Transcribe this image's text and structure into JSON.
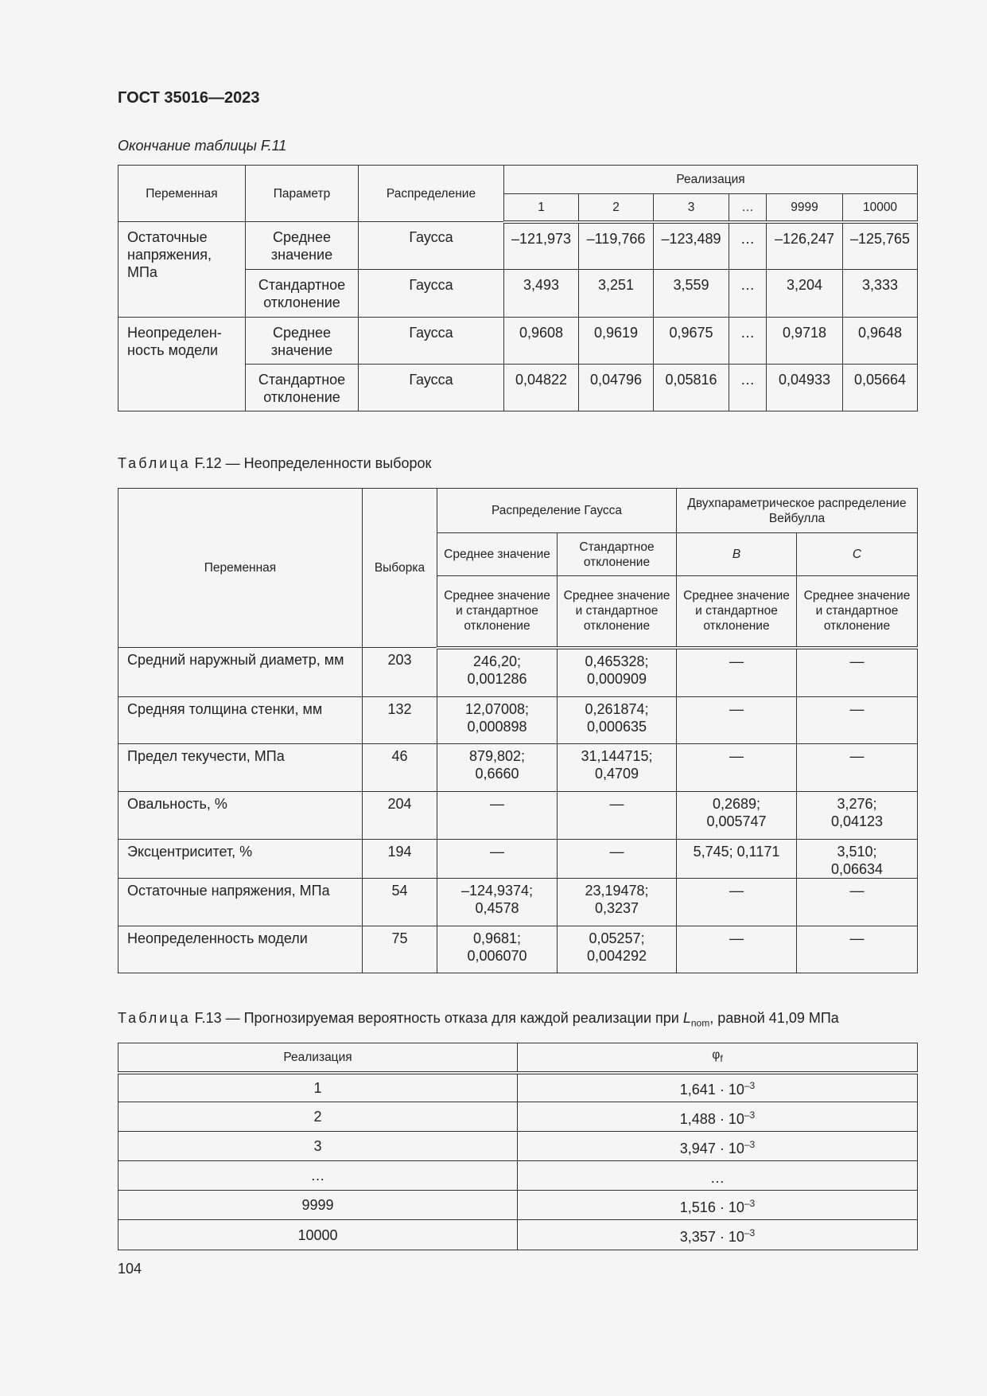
{
  "header": {
    "doc_title": "ГОСТ 35016—2023"
  },
  "table_f11": {
    "caption": "Окончание таблицы F.11",
    "headers": {
      "variable": "Переменная",
      "parameter": "Параметр",
      "distribution": "Распределение",
      "realization": "Реализация",
      "realizations": [
        "1",
        "2",
        "3",
        "…",
        "9999",
        "10000"
      ]
    },
    "rows": [
      {
        "variable": "Остаточные напряжения, МПа",
        "parameter": "Среднее значение",
        "distribution": "Гаусса",
        "values": [
          "–121,973",
          "–119,766",
          "–123,489",
          "…",
          "–126,247",
          "–125,765"
        ]
      },
      {
        "parameter": "Стандартное отклонение",
        "distribution": "Гаусса",
        "values": [
          "3,493",
          "3,251",
          "3,559",
          "…",
          "3,204",
          "3,333"
        ]
      },
      {
        "variable": "Неопределен-ность модели",
        "parameter": "Среднее значение",
        "distribution": "Гаусса",
        "values": [
          "0,9608",
          "0,9619",
          "0,9675",
          "…",
          "0,9718",
          "0,9648"
        ]
      },
      {
        "parameter": "Стандартное отклонение",
        "distribution": "Гаусса",
        "values": [
          "0,04822",
          "0,04796",
          "0,05816",
          "…",
          "0,04933",
          "0,05664"
        ]
      }
    ]
  },
  "table_f12": {
    "caption_label": "Таблица",
    "caption_text": "F.12 — Неопределенности выборок",
    "headers": {
      "variable": "Переменная",
      "sample": "Выборка",
      "gauss": "Распределение Гаусса",
      "weibull": "Двухпараметрическое распределение Вейбулла",
      "mean": "Среднее значение",
      "std": "Стандартное отклонение",
      "b": "B",
      "c": "C",
      "sub": "Среднее значение и стандартное отклонение"
    },
    "rows": [
      {
        "variable": "Средний наружный диаметр, мм",
        "sample": "203",
        "g_mean": "246,20; 0,001286",
        "g_std": "0,465328; 0,000909",
        "w_b": "—",
        "w_c": "—"
      },
      {
        "variable": "Средняя толщина стенки, мм",
        "sample": "132",
        "g_mean": "12,07008; 0,000898",
        "g_std": "0,261874; 0,000635",
        "w_b": "—",
        "w_c": "—"
      },
      {
        "variable": "Предел текучести, МПа",
        "sample": "46",
        "g_mean": "879,802; 0,6660",
        "g_std": "31,144715; 0,4709",
        "w_b": "—",
        "w_c": "—"
      },
      {
        "variable": "Овальность, %",
        "sample": "204",
        "g_mean": "—",
        "g_std": "—",
        "w_b": "0,2689; 0,005747",
        "w_c": "3,276; 0,04123"
      },
      {
        "variable": "Эксцентриситет, %",
        "sample": "194",
        "g_mean": "—",
        "g_std": "—",
        "w_b": "5,745; 0,1171",
        "w_c": "3,510; 0,06634"
      },
      {
        "variable": "Остаточные напряжения, МПа",
        "sample": "54",
        "g_mean": "–124,9374; 0,4578",
        "g_std": "23,19478; 0,3237",
        "w_b": "—",
        "w_c": "—"
      },
      {
        "variable": "Неопределенность модели",
        "sample": "75",
        "g_mean": "0,9681; 0,006070",
        "g_std": "0,05257; 0,004292",
        "w_b": "—",
        "w_c": "—"
      }
    ]
  },
  "table_f13": {
    "caption_label": "Таблица",
    "caption_text": "F.13 — Прогнозируемая вероятность отказа для каждой реализации при",
    "caption_var": "L",
    "caption_sub": "nom",
    "caption_tail": ", равной 41,09 МПа",
    "headers": {
      "realization": "Реализация",
      "phi": "φ",
      "phi_sub": "f"
    },
    "rows": [
      {
        "r": "1",
        "mant": "1,641 · 10",
        "exp": "–3"
      },
      {
        "r": "2",
        "mant": "1,488 · 10",
        "exp": "–3"
      },
      {
        "r": "3",
        "mant": "3,947 · 10",
        "exp": "–3"
      },
      {
        "r": "…",
        "mant": "…",
        "exp": ""
      },
      {
        "r": "9999",
        "mant": "1,516 · 10",
        "exp": "–3"
      },
      {
        "r": "10000",
        "mant": "3,357 · 10",
        "exp": "–3"
      }
    ]
  },
  "footer": {
    "page_number": "104"
  }
}
